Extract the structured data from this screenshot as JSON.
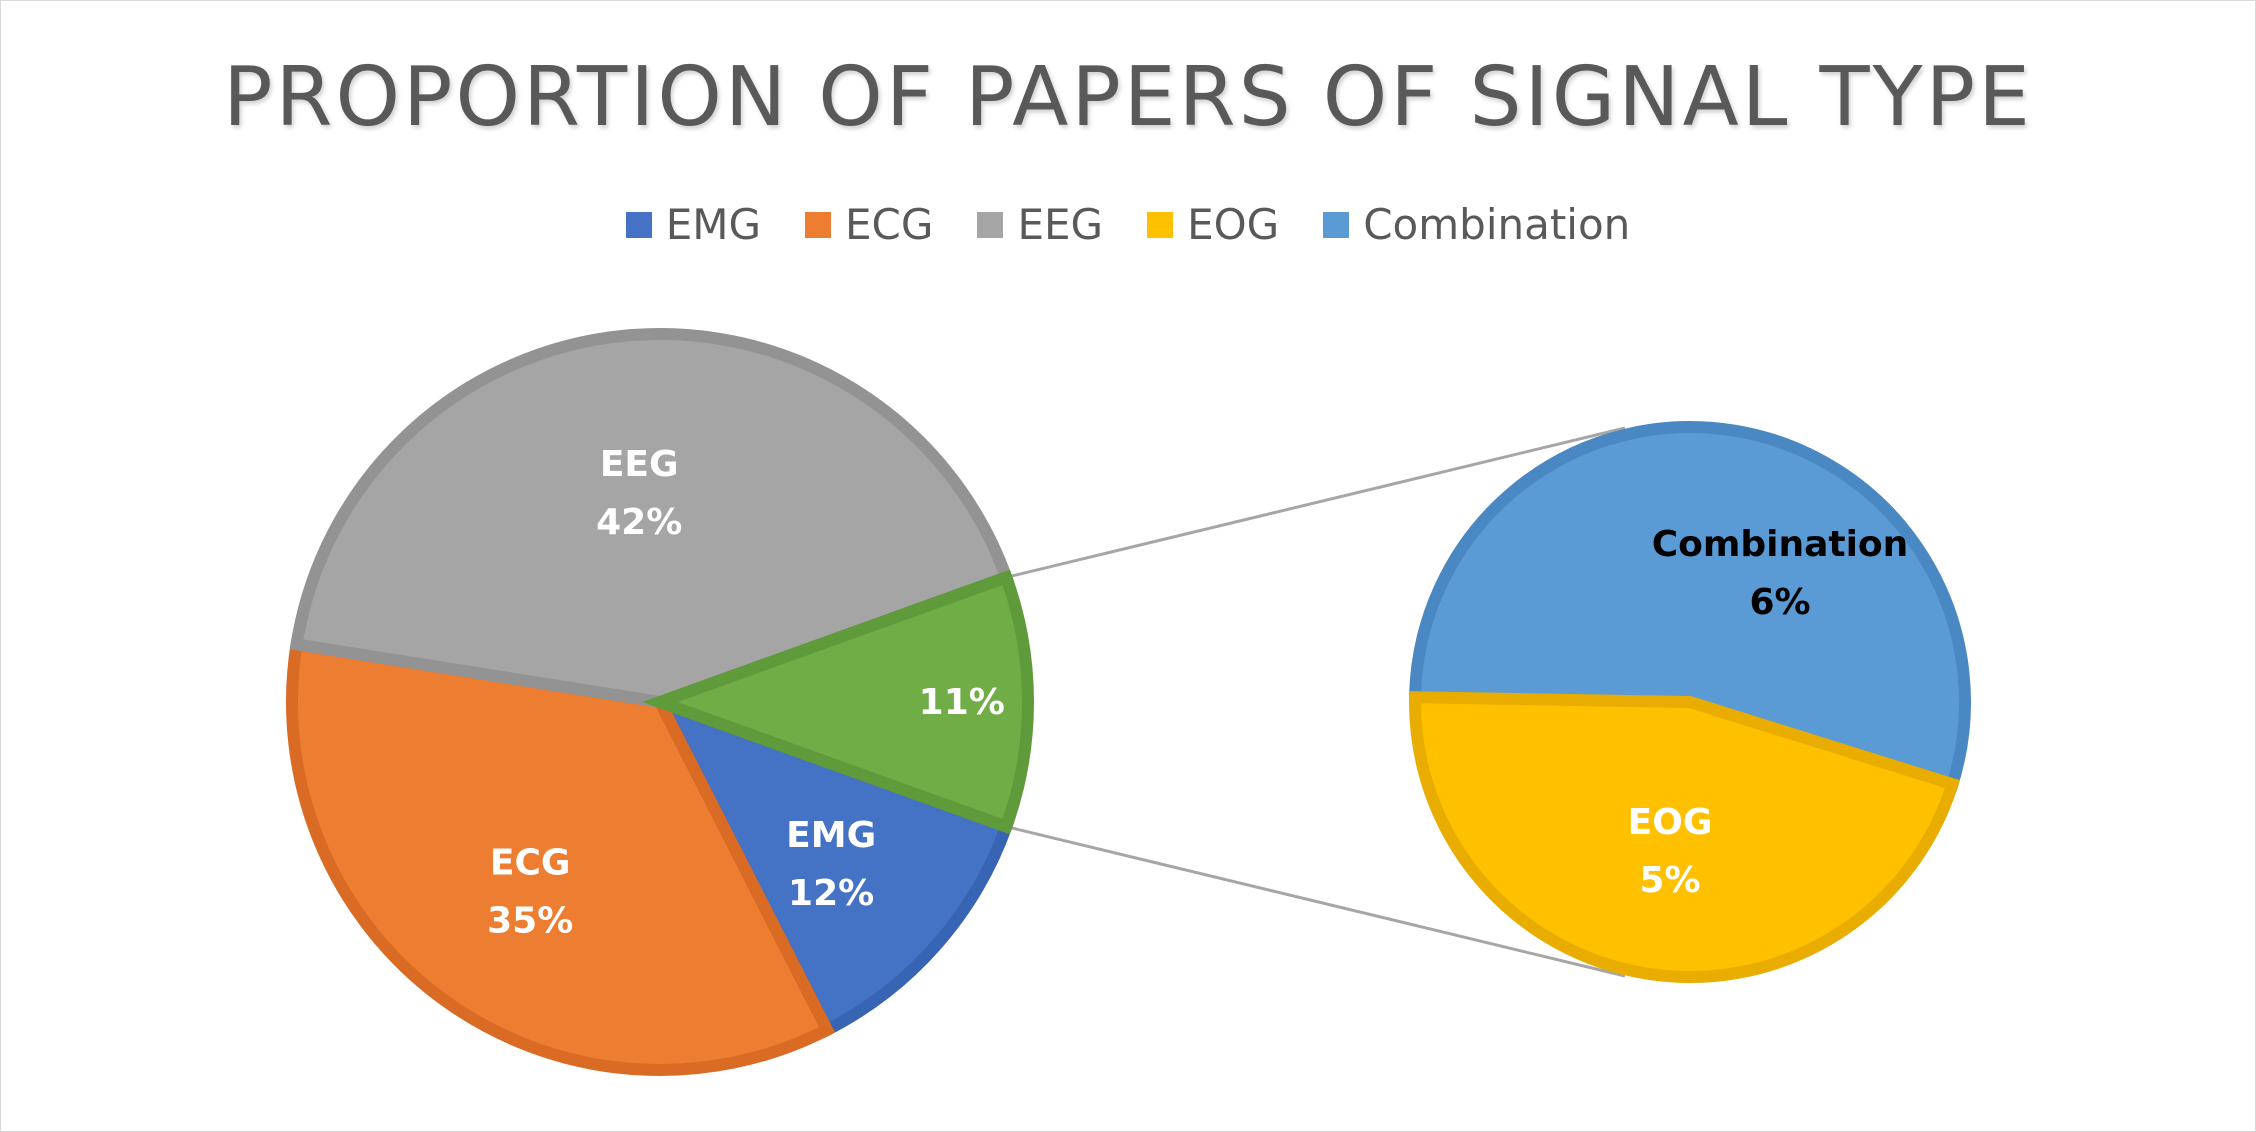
{
  "chart_data": {
    "type": "pie",
    "subtype": "pie-of-pie",
    "title": "PROPORTION OF PAPERS OF SIGNAL TYPE",
    "legend_position": "top",
    "legend": [
      "EMG",
      "ECG",
      "EEG",
      "EOG",
      "Combination"
    ],
    "slices": [
      {
        "name": "EMG",
        "label": "EMG",
        "value": 12,
        "percent_label": "12%",
        "color": "#4472c4",
        "border": "#3864b4"
      },
      {
        "name": "ECG",
        "label": "ECG",
        "value": 35,
        "percent_label": "35%",
        "color": "#ed7d31",
        "border": "#d96b24"
      },
      {
        "name": "EEG",
        "label": "EEG",
        "value": 42,
        "percent_label": "42%",
        "color": "#a5a5a5",
        "border": "#939393"
      },
      {
        "name": "Other",
        "label": "",
        "value": 11,
        "percent_label": "11%",
        "color": "#70ad47",
        "border": "#5f9a3b"
      }
    ],
    "secondary_slices": [
      {
        "name": "Combination",
        "label": "Combination",
        "value": 6,
        "percent_label": "6%",
        "color": "#5b9bd5",
        "border": "#4a88c3"
      },
      {
        "name": "EOG",
        "label": "EOG",
        "value": 5,
        "percent_label": "5%",
        "color": "#ffc000",
        "border": "#e8ad00"
      }
    ],
    "legend_colors": [
      "#4472c4",
      "#ed7d31",
      "#a5a5a5",
      "#ffc000",
      "#5b9bd5"
    ]
  }
}
